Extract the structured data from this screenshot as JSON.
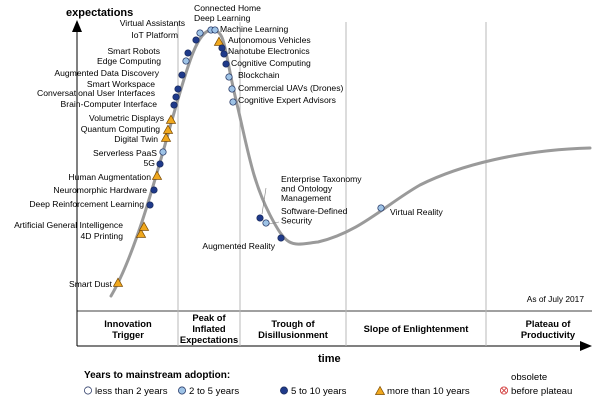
{
  "chart_data": {
    "type": "scatter",
    "title": "",
    "ylabel": "expectations",
    "xlabel": "time",
    "as_of": "As of July 2017",
    "phases": [
      {
        "lines": [
          "Innovation",
          "Trigger"
        ]
      },
      {
        "lines": [
          "Peak of",
          "Inflated",
          "Expectations"
        ]
      },
      {
        "lines": [
          "Trough of",
          "Disillusionment"
        ]
      },
      {
        "lines": [
          "Slope of Enlightenment"
        ]
      },
      {
        "lines": [
          "Plateau of",
          "Productivity"
        ]
      }
    ],
    "legend": {
      "title": "Years to mainstream adoption:",
      "items": [
        {
          "key": "lt2",
          "label": "less than 2 years",
          "fill": "#ffffff",
          "shape": "circle"
        },
        {
          "key": "2to5",
          "label": "2 to 5 years",
          "fill": "#9ec3e6",
          "shape": "circle"
        },
        {
          "key": "5to10",
          "label": "5 to 10 years",
          "fill": "#1f3a8a",
          "shape": "circle"
        },
        {
          "key": "gt10",
          "label": "more than 10 years",
          "fill": "#f0a81e",
          "shape": "triangle"
        },
        {
          "key": "obsolete",
          "label": "before plateau",
          "label_top": "obsolete",
          "fill": "#ffffff",
          "shape": "cross"
        }
      ]
    },
    "curve_color": "#9a9a9a",
    "technologies": [
      {
        "name": "Smart Dust",
        "cat": "gt10"
      },
      {
        "name": "4D Printing",
        "cat": "gt10"
      },
      {
        "name": "Artificial General Intelligence",
        "cat": "gt10"
      },
      {
        "name": "Deep Reinforcement Learning",
        "cat": "5to10"
      },
      {
        "name": "Neuromorphic Hardware",
        "cat": "5to10"
      },
      {
        "name": "Human Augmentation",
        "cat": "gt10"
      },
      {
        "name": "5G",
        "cat": "5to10"
      },
      {
        "name": "Serverless PaaS",
        "cat": "2to5"
      },
      {
        "name": "Digital Twin",
        "cat": "gt10"
      },
      {
        "name": "Quantum Computing",
        "cat": "gt10"
      },
      {
        "name": "Volumetric Displays",
        "cat": "gt10"
      },
      {
        "name": "Brain-Computer Interface",
        "cat": "5to10"
      },
      {
        "name": "Conversational User Interfaces",
        "cat": "5to10"
      },
      {
        "name": "Smart Workspace",
        "cat": "5to10"
      },
      {
        "name": "Augmented Data Discovery",
        "cat": "5to10"
      },
      {
        "name": "Edge Computing",
        "cat": "2to5"
      },
      {
        "name": "Smart Robots",
        "cat": "5to10"
      },
      {
        "name": "IoT Platform",
        "cat": "5to10"
      },
      {
        "name": "Virtual Assistants",
        "cat": "2to5"
      },
      {
        "name": "Connected Home",
        "cat": "2to5"
      },
      {
        "name": "Deep Learning",
        "cat": "2to5"
      },
      {
        "name": "Machine Learning",
        "cat": "gt10"
      },
      {
        "name": "Autonomous Vehicles",
        "cat": "5to10"
      },
      {
        "name": "Nanotube Electronics",
        "cat": "5to10"
      },
      {
        "name": "Cognitive Computing",
        "cat": "5to10"
      },
      {
        "name": "Blockchain",
        "cat": "2to5"
      },
      {
        "name": "Commercial UAVs (Drones)",
        "cat": "2to5"
      },
      {
        "name": "Cognitive Expert Advisors",
        "cat": "2to5"
      },
      {
        "name": "Enterprise Taxonomy and Ontology Management",
        "cat": "5to10"
      },
      {
        "name": "Software-Defined Security",
        "cat": "2to5"
      },
      {
        "name": "Augmented Reality",
        "cat": "5to10"
      },
      {
        "name": "Virtual Reality",
        "cat": "2to5"
      }
    ]
  }
}
